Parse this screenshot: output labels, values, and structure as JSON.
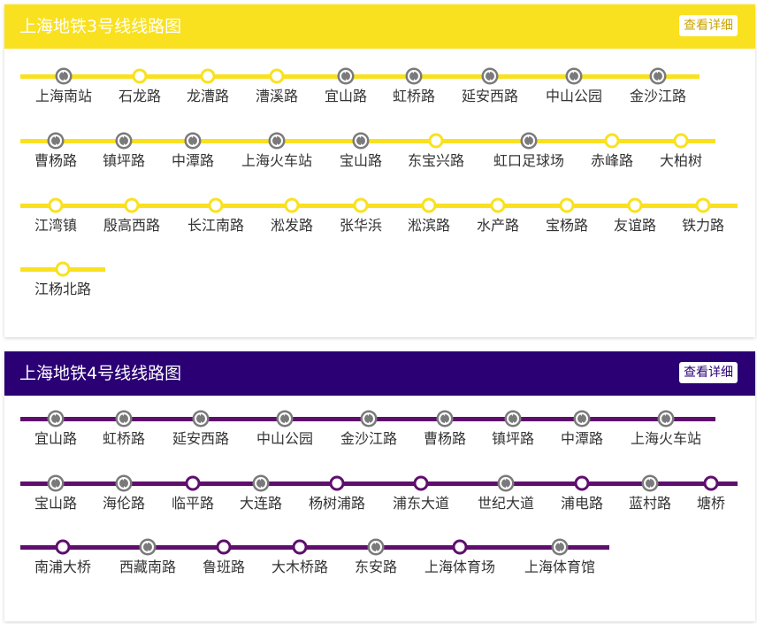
{
  "lines": [
    {
      "id": "l3",
      "title": "上海地铁3号线线路图",
      "detail_label": "查看详细",
      "color": "#F9E11F",
      "detail_text_color": "#C9A400",
      "stations": [
        {
          "name": "上海南站",
          "transfer": true
        },
        {
          "name": "石龙路",
          "transfer": false
        },
        {
          "name": "龙漕路",
          "transfer": false
        },
        {
          "name": "漕溪路",
          "transfer": false
        },
        {
          "name": "宜山路",
          "transfer": true
        },
        {
          "name": "虹桥路",
          "transfer": true
        },
        {
          "name": "延安西路",
          "transfer": true
        },
        {
          "name": "中山公园",
          "transfer": true
        },
        {
          "name": "金沙江路",
          "transfer": true
        },
        {
          "name": "曹杨路",
          "transfer": true
        },
        {
          "name": "镇坪路",
          "transfer": true
        },
        {
          "name": "中潭路",
          "transfer": true
        },
        {
          "name": "上海火车站",
          "transfer": true
        },
        {
          "name": "宝山路",
          "transfer": true
        },
        {
          "name": "东宝兴路",
          "transfer": false
        },
        {
          "name": "虹口足球场",
          "transfer": true
        },
        {
          "name": "赤峰路",
          "transfer": false
        },
        {
          "name": "大柏树",
          "transfer": false
        },
        {
          "name": "江湾镇",
          "transfer": false
        },
        {
          "name": "殷高西路",
          "transfer": false
        },
        {
          "name": "长江南路",
          "transfer": false
        },
        {
          "name": "淞发路",
          "transfer": false
        },
        {
          "name": "张华浜",
          "transfer": false
        },
        {
          "name": "淞滨路",
          "transfer": false
        },
        {
          "name": "水产路",
          "transfer": false
        },
        {
          "name": "宝杨路",
          "transfer": false
        },
        {
          "name": "友谊路",
          "transfer": false
        },
        {
          "name": "铁力路",
          "transfer": false
        },
        {
          "name": "江杨北路",
          "transfer": false
        }
      ]
    },
    {
      "id": "l4",
      "title": "上海地铁4号线线路图",
      "detail_label": "查看详细",
      "color": "#5F0E6E",
      "header_color": "#2A0074",
      "detail_text_color": "#2A0074",
      "stations": [
        {
          "name": "宜山路",
          "transfer": true
        },
        {
          "name": "虹桥路",
          "transfer": true
        },
        {
          "name": "延安西路",
          "transfer": true
        },
        {
          "name": "中山公园",
          "transfer": true
        },
        {
          "name": "金沙江路",
          "transfer": true
        },
        {
          "name": "曹杨路",
          "transfer": true
        },
        {
          "name": "镇坪路",
          "transfer": true
        },
        {
          "name": "中潭路",
          "transfer": true
        },
        {
          "name": "上海火车站",
          "transfer": true
        },
        {
          "name": "宝山路",
          "transfer": true
        },
        {
          "name": "海伦路",
          "transfer": true
        },
        {
          "name": "临平路",
          "transfer": false
        },
        {
          "name": "大连路",
          "transfer": true
        },
        {
          "name": "杨树浦路",
          "transfer": false
        },
        {
          "name": "浦东大道",
          "transfer": false
        },
        {
          "name": "世纪大道",
          "transfer": true
        },
        {
          "name": "浦电路",
          "transfer": false
        },
        {
          "name": "蓝村路",
          "transfer": true
        },
        {
          "name": "塘桥",
          "transfer": false
        },
        {
          "name": "南浦大桥",
          "transfer": false
        },
        {
          "name": "西藏南路",
          "transfer": true
        },
        {
          "name": "鲁班路",
          "transfer": false
        },
        {
          "name": "大木桥路",
          "transfer": false
        },
        {
          "name": "东安路",
          "transfer": true
        },
        {
          "name": "上海体育场",
          "transfer": false
        },
        {
          "name": "上海体育馆",
          "transfer": true
        }
      ]
    }
  ]
}
